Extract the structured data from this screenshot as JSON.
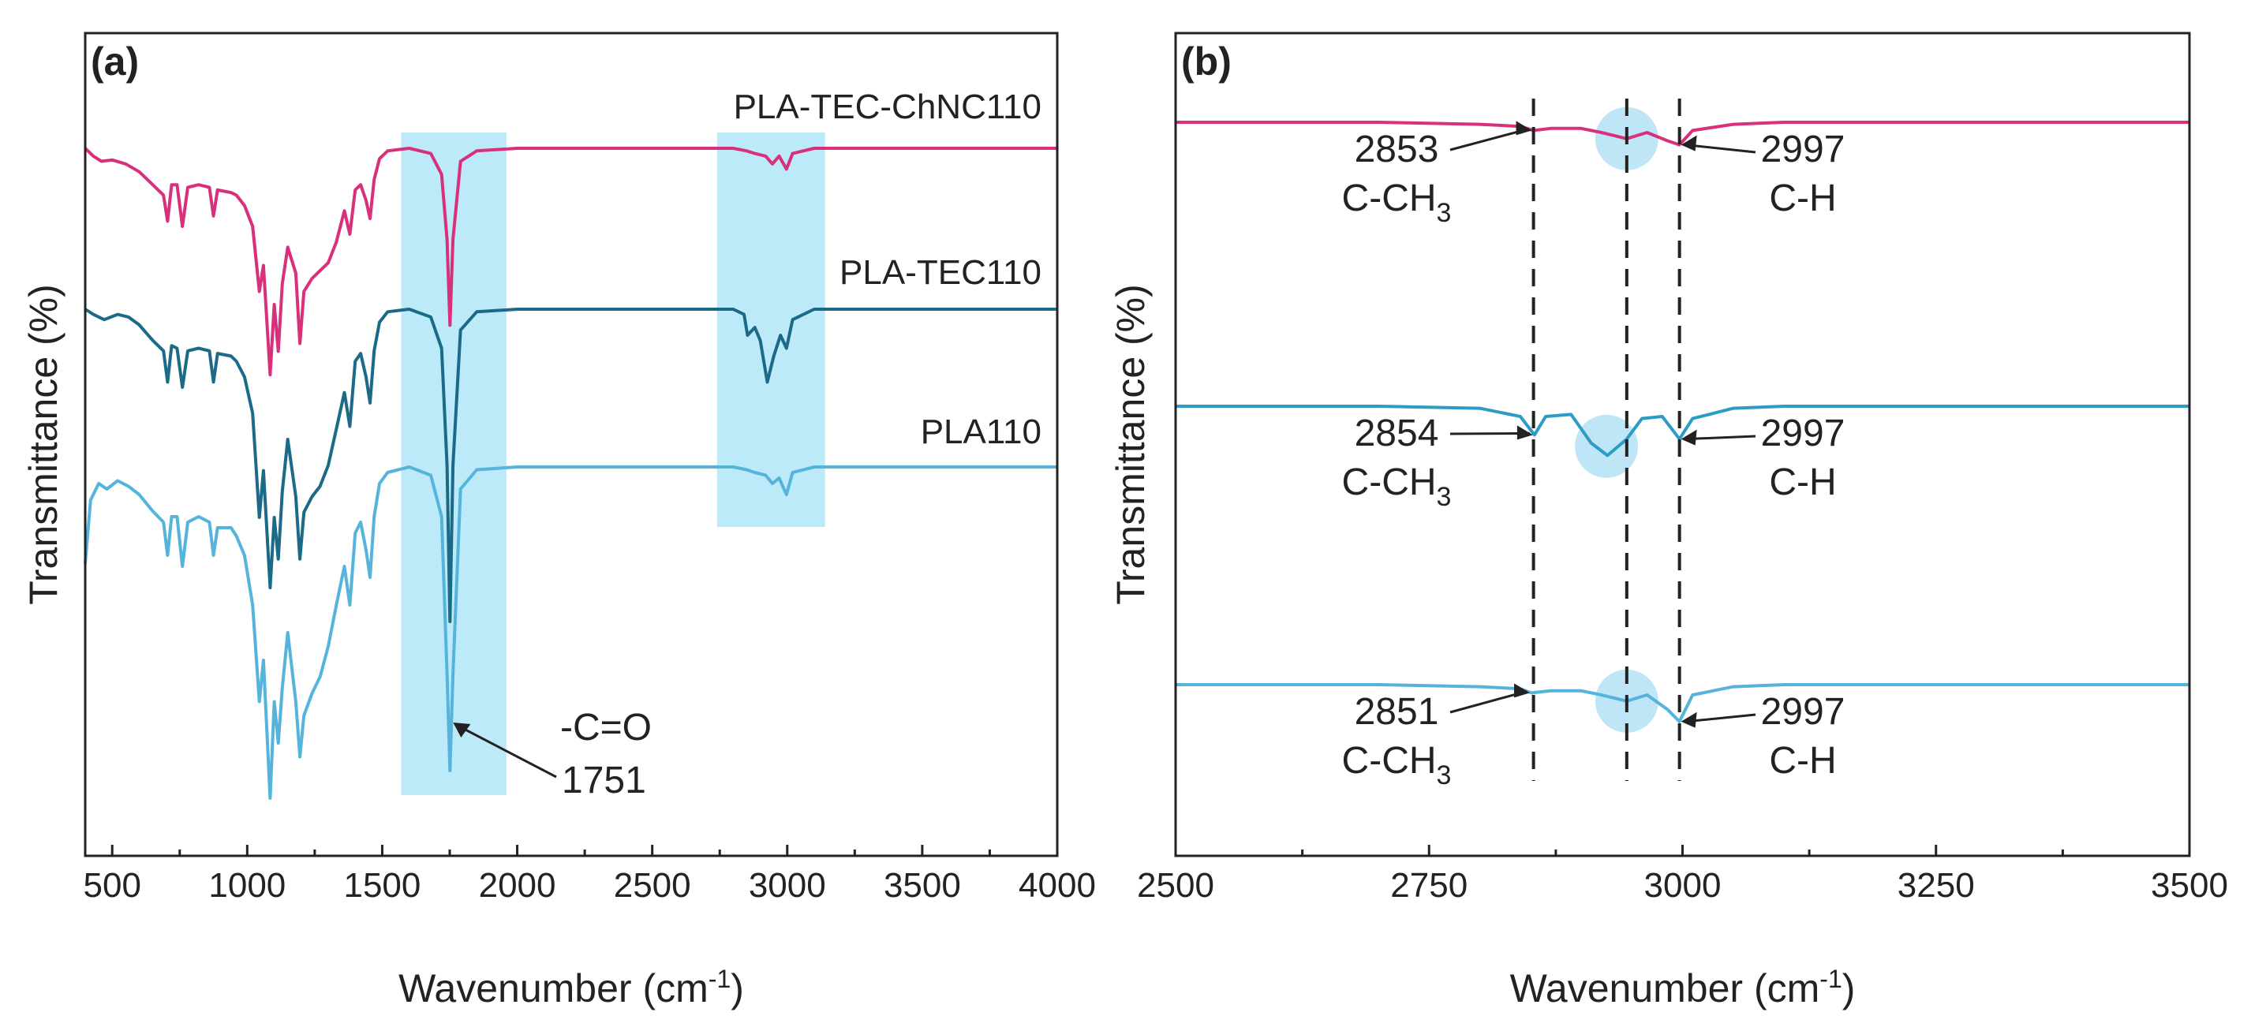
{
  "chart_data": [
    {
      "panel": "(a)",
      "type": "line",
      "xlabel": "Wavenumber (cm",
      "xlabel_sup": "-1",
      "xlabel_close": ")",
      "ylabel": "Transmittance (%)",
      "xlim": [
        400,
        4000
      ],
      "xticks": [
        500,
        1000,
        1500,
        2000,
        2500,
        3000,
        3500,
        4000
      ],
      "highlight_bands": [
        [
          1570,
          1960
        ],
        [
          2740,
          3140
        ]
      ],
      "highlight_color": "#bdeaf8",
      "series": [
        {
          "name": "PLA-TEC-ChNC110",
          "color": "#d8307b",
          "baseline": 0.0,
          "points": [
            [
              400,
              0.0
            ],
            [
              430,
              0.03
            ],
            [
              460,
              0.05
            ],
            [
              500,
              0.045
            ],
            [
              550,
              0.06
            ],
            [
              600,
              0.09
            ],
            [
              650,
              0.14
            ],
            [
              690,
              0.18
            ],
            [
              705,
              0.28
            ],
            [
              720,
              0.14
            ],
            [
              740,
              0.14
            ],
            [
              760,
              0.3
            ],
            [
              780,
              0.15
            ],
            [
              820,
              0.14
            ],
            [
              860,
              0.15
            ],
            [
              875,
              0.26
            ],
            [
              890,
              0.16
            ],
            [
              940,
              0.17
            ],
            [
              960,
              0.18
            ],
            [
              990,
              0.22
            ],
            [
              1020,
              0.3
            ],
            [
              1045,
              0.55
            ],
            [
              1060,
              0.45
            ],
            [
              1085,
              0.87
            ],
            [
              1100,
              0.6
            ],
            [
              1115,
              0.78
            ],
            [
              1130,
              0.52
            ],
            [
              1150,
              0.38
            ],
            [
              1180,
              0.48
            ],
            [
              1195,
              0.75
            ],
            [
              1210,
              0.55
            ],
            [
              1240,
              0.5
            ],
            [
              1270,
              0.47
            ],
            [
              1300,
              0.44
            ],
            [
              1330,
              0.36
            ],
            [
              1360,
              0.24
            ],
            [
              1380,
              0.33
            ],
            [
              1400,
              0.16
            ],
            [
              1420,
              0.14
            ],
            [
              1440,
              0.2
            ],
            [
              1455,
              0.27
            ],
            [
              1470,
              0.12
            ],
            [
              1490,
              0.04
            ],
            [
              1520,
              0.01
            ],
            [
              1600,
              0.0
            ],
            [
              1680,
              0.02
            ],
            [
              1720,
              0.1
            ],
            [
              1740,
              0.35
            ],
            [
              1751,
              0.68
            ],
            [
              1762,
              0.35
            ],
            [
              1790,
              0.05
            ],
            [
              1850,
              0.01
            ],
            [
              2000,
              0.0
            ],
            [
              2800,
              0.0
            ],
            [
              2850,
              0.01
            ],
            [
              2880,
              0.02
            ],
            [
              2920,
              0.03
            ],
            [
              2945,
              0.06
            ],
            [
              2970,
              0.03
            ],
            [
              2997,
              0.08
            ],
            [
              3020,
              0.02
            ],
            [
              3100,
              0.0
            ],
            [
              4000,
              0.0
            ]
          ]
        },
        {
          "name": "PLA-TEC110",
          "color": "#1b6a87",
          "baseline": 0.0,
          "points": [
            [
              400,
              0.0
            ],
            [
              430,
              0.02
            ],
            [
              470,
              0.04
            ],
            [
              520,
              0.02
            ],
            [
              560,
              0.03
            ],
            [
              600,
              0.06
            ],
            [
              650,
              0.12
            ],
            [
              690,
              0.16
            ],
            [
              705,
              0.28
            ],
            [
              720,
              0.14
            ],
            [
              740,
              0.15
            ],
            [
              760,
              0.3
            ],
            [
              780,
              0.16
            ],
            [
              820,
              0.15
            ],
            [
              860,
              0.16
            ],
            [
              875,
              0.28
            ],
            [
              890,
              0.17
            ],
            [
              940,
              0.18
            ],
            [
              960,
              0.2
            ],
            [
              990,
              0.26
            ],
            [
              1020,
              0.4
            ],
            [
              1045,
              0.8
            ],
            [
              1060,
              0.62
            ],
            [
              1085,
              1.07
            ],
            [
              1100,
              0.8
            ],
            [
              1115,
              0.96
            ],
            [
              1130,
              0.7
            ],
            [
              1150,
              0.5
            ],
            [
              1180,
              0.72
            ],
            [
              1195,
              0.96
            ],
            [
              1210,
              0.78
            ],
            [
              1240,
              0.72
            ],
            [
              1270,
              0.68
            ],
            [
              1300,
              0.6
            ],
            [
              1330,
              0.46
            ],
            [
              1360,
              0.32
            ],
            [
              1380,
              0.45
            ],
            [
              1400,
              0.2
            ],
            [
              1420,
              0.17
            ],
            [
              1440,
              0.26
            ],
            [
              1455,
              0.36
            ],
            [
              1470,
              0.16
            ],
            [
              1490,
              0.05
            ],
            [
              1520,
              0.01
            ],
            [
              1600,
              0.0
            ],
            [
              1680,
              0.03
            ],
            [
              1720,
              0.15
            ],
            [
              1740,
              0.6
            ],
            [
              1751,
              1.2
            ],
            [
              1762,
              0.6
            ],
            [
              1790,
              0.08
            ],
            [
              1850,
              0.01
            ],
            [
              2000,
              0.0
            ],
            [
              2800,
              0.0
            ],
            [
              2840,
              0.02
            ],
            [
              2853,
              0.1
            ],
            [
              2880,
              0.07
            ],
            [
              2900,
              0.12
            ],
            [
              2926,
              0.28
            ],
            [
              2950,
              0.18
            ],
            [
              2975,
              0.1
            ],
            [
              2997,
              0.15
            ],
            [
              3020,
              0.04
            ],
            [
              3100,
              0.0
            ],
            [
              4000,
              0.0
            ]
          ]
        },
        {
          "name": "PLA110",
          "color": "#55b4db",
          "baseline": 0.0,
          "points": [
            [
              400,
              0.35
            ],
            [
              420,
              0.12
            ],
            [
              450,
              0.06
            ],
            [
              480,
              0.08
            ],
            [
              520,
              0.05
            ],
            [
              560,
              0.07
            ],
            [
              600,
              0.1
            ],
            [
              650,
              0.16
            ],
            [
              690,
              0.2
            ],
            [
              705,
              0.32
            ],
            [
              720,
              0.18
            ],
            [
              740,
              0.18
            ],
            [
              760,
              0.36
            ],
            [
              780,
              0.2
            ],
            [
              820,
              0.18
            ],
            [
              860,
              0.2
            ],
            [
              875,
              0.32
            ],
            [
              890,
              0.22
            ],
            [
              940,
              0.22
            ],
            [
              960,
              0.25
            ],
            [
              990,
              0.32
            ],
            [
              1020,
              0.5
            ],
            [
              1045,
              0.85
            ],
            [
              1060,
              0.7
            ],
            [
              1085,
              1.2
            ],
            [
              1100,
              0.85
            ],
            [
              1115,
              1.0
            ],
            [
              1130,
              0.8
            ],
            [
              1150,
              0.6
            ],
            [
              1180,
              0.85
            ],
            [
              1195,
              1.05
            ],
            [
              1210,
              0.9
            ],
            [
              1240,
              0.82
            ],
            [
              1270,
              0.76
            ],
            [
              1300,
              0.65
            ],
            [
              1330,
              0.5
            ],
            [
              1360,
              0.36
            ],
            [
              1380,
              0.5
            ],
            [
              1400,
              0.24
            ],
            [
              1420,
              0.2
            ],
            [
              1440,
              0.3
            ],
            [
              1455,
              0.4
            ],
            [
              1470,
              0.18
            ],
            [
              1490,
              0.06
            ],
            [
              1520,
              0.02
            ],
            [
              1600,
              0.0
            ],
            [
              1680,
              0.03
            ],
            [
              1720,
              0.18
            ],
            [
              1740,
              0.75
            ],
            [
              1751,
              1.1
            ],
            [
              1762,
              0.75
            ],
            [
              1790,
              0.08
            ],
            [
              1850,
              0.01
            ],
            [
              2000,
              0.0
            ],
            [
              2800,
              0.0
            ],
            [
              2850,
              0.01
            ],
            [
              2880,
              0.02
            ],
            [
              2920,
              0.03
            ],
            [
              2945,
              0.06
            ],
            [
              2970,
              0.04
            ],
            [
              2997,
              0.1
            ],
            [
              3020,
              0.02
            ],
            [
              3100,
              0.0
            ],
            [
              4000,
              0.0
            ]
          ]
        }
      ],
      "annotations": [
        {
          "text": "-C=O",
          "target_x": 1751
        },
        {
          "text": "1751",
          "target_x": 1751
        }
      ]
    },
    {
      "panel": "(b)",
      "type": "line",
      "xlabel": "Wavenumber (cm",
      "xlabel_sup": "-1",
      "xlabel_close": ")",
      "ylabel": "Transmittance (%)",
      "xlim": [
        2500,
        3500
      ],
      "xticks": [
        2500,
        2750,
        3000,
        3250,
        3500
      ],
      "dashed_vlines": [
        2853,
        2945,
        2997
      ],
      "circle_color": "#bfe6f6",
      "series": [
        {
          "name": "PLA-TEC-ChNC110",
          "color": "#d8307b",
          "circle_x": 2945,
          "points": [
            [
              2500,
              0.0
            ],
            [
              2700,
              0.0
            ],
            [
              2800,
              0.01
            ],
            [
              2840,
              0.02
            ],
            [
              2853,
              0.04
            ],
            [
              2870,
              0.03
            ],
            [
              2900,
              0.03
            ],
            [
              2920,
              0.05
            ],
            [
              2945,
              0.08
            ],
            [
              2965,
              0.05
            ],
            [
              2985,
              0.09
            ],
            [
              2997,
              0.11
            ],
            [
              3010,
              0.04
            ],
            [
              3050,
              0.01
            ],
            [
              3100,
              0.0
            ],
            [
              3500,
              0.0
            ]
          ]
        },
        {
          "name": "PLA-TEC110",
          "color": "#2b9cc5",
          "circle_x": 2925,
          "points": [
            [
              2500,
              0.0
            ],
            [
              2700,
              0.0
            ],
            [
              2800,
              0.01
            ],
            [
              2840,
              0.05
            ],
            [
              2854,
              0.14
            ],
            [
              2865,
              0.05
            ],
            [
              2890,
              0.04
            ],
            [
              2910,
              0.18
            ],
            [
              2926,
              0.24
            ],
            [
              2945,
              0.16
            ],
            [
              2960,
              0.06
            ],
            [
              2980,
              0.05
            ],
            [
              2997,
              0.16
            ],
            [
              3010,
              0.06
            ],
            [
              3050,
              0.01
            ],
            [
              3100,
              0.0
            ],
            [
              3500,
              0.0
            ]
          ]
        },
        {
          "name": "PLA110",
          "color": "#55b4db",
          "circle_x": 2945,
          "points": [
            [
              2500,
              0.0
            ],
            [
              2700,
              0.0
            ],
            [
              2800,
              0.01
            ],
            [
              2840,
              0.02
            ],
            [
              2851,
              0.04
            ],
            [
              2870,
              0.03
            ],
            [
              2900,
              0.03
            ],
            [
              2920,
              0.05
            ],
            [
              2945,
              0.08
            ],
            [
              2965,
              0.05
            ],
            [
              2985,
              0.12
            ],
            [
              2997,
              0.18
            ],
            [
              3010,
              0.05
            ],
            [
              3050,
              0.01
            ],
            [
              3100,
              0.0
            ],
            [
              3500,
              0.0
            ]
          ]
        }
      ],
      "peak_labels": [
        {
          "series": 0,
          "left_value": "2853",
          "left_group": "C-CH",
          "left_sub": "3",
          "left_x": 2853,
          "right_value": "2997",
          "right_group": "C-H",
          "right_x": 2997
        },
        {
          "series": 1,
          "left_value": "2854",
          "left_group": "C-CH",
          "left_sub": "3",
          "left_x": 2854,
          "right_value": "2997",
          "right_group": "C-H",
          "right_x": 2997
        },
        {
          "series": 2,
          "left_value": "2851",
          "left_group": "C-CH",
          "left_sub": "3",
          "left_x": 2851,
          "right_value": "2997",
          "right_group": "C-H",
          "right_x": 2997
        }
      ]
    }
  ]
}
